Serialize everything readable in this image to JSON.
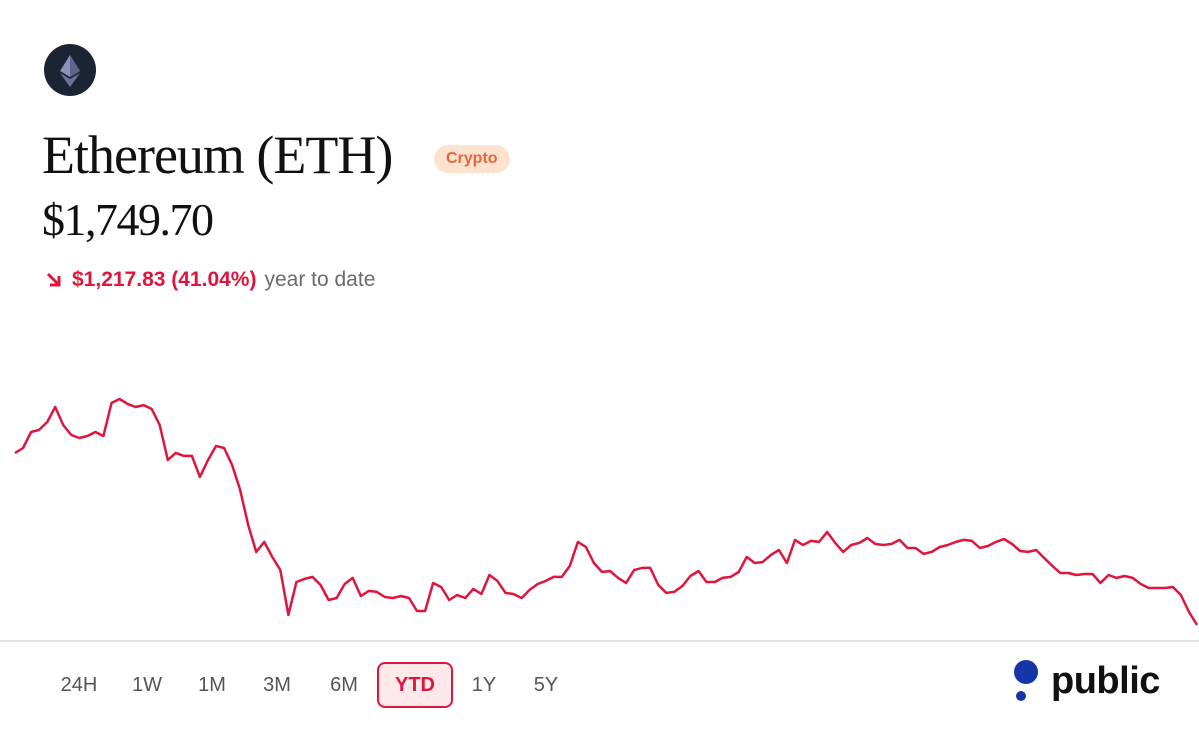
{
  "header": {
    "name": "Ethereum (ETH)",
    "badge": "Crypto",
    "price": "$1,749.70",
    "change": "$1,217.83 (41.04%)",
    "period": "year to date"
  },
  "chart_data": {
    "type": "line",
    "color": "#e0153d",
    "values": [
      2967.53,
      3003,
      3116,
      3131,
      3187,
      3293,
      3166,
      3095,
      3074,
      3088,
      3116,
      3088,
      3322,
      3350,
      3315,
      3293,
      3307,
      3279,
      3166,
      2918,
      2968,
      2947,
      2947,
      2798,
      2918,
      3017,
      3003,
      2883,
      2706,
      2458,
      2267,
      2338,
      2231,
      2139,
      1821,
      2054,
      2076,
      2090,
      2033,
      1927,
      1941,
      2040,
      2083,
      1955,
      1991,
      1984,
      1948,
      1941,
      1955,
      1941,
      1849,
      1849,
      2047,
      2019,
      1927,
      1962,
      1941,
      2005,
      1969,
      2104,
      2062,
      1977,
      1969,
      1941,
      1998,
      2040,
      2062,
      2090,
      2090,
      2168,
      2338,
      2302,
      2189,
      2125,
      2132,
      2083,
      2047,
      2139,
      2154,
      2154,
      2033,
      1977,
      1984,
      2026,
      2097,
      2132,
      2054,
      2054,
      2083,
      2090,
      2125,
      2231,
      2189,
      2196,
      2246,
      2281,
      2189,
      2352,
      2316,
      2345,
      2338,
      2408,
      2331,
      2267,
      2316,
      2331,
      2366,
      2323,
      2316,
      2323,
      2352,
      2295,
      2295,
      2253,
      2267,
      2302,
      2316,
      2338,
      2352,
      2345,
      2295,
      2309,
      2338,
      2359,
      2323,
      2274,
      2267,
      2281,
      2224,
      2168,
      2118,
      2118,
      2104,
      2111,
      2111,
      2047,
      2104,
      2083,
      2097,
      2083,
      2040,
      2012,
      2012,
      2012,
      2019,
      1962,
      1842,
      1749.7
    ]
  },
  "ranges": [
    "24H",
    "1W",
    "1M",
    "3M",
    "6M",
    "YTD",
    "1Y",
    "5Y"
  ],
  "selected_range": "YTD",
  "brand": "public"
}
